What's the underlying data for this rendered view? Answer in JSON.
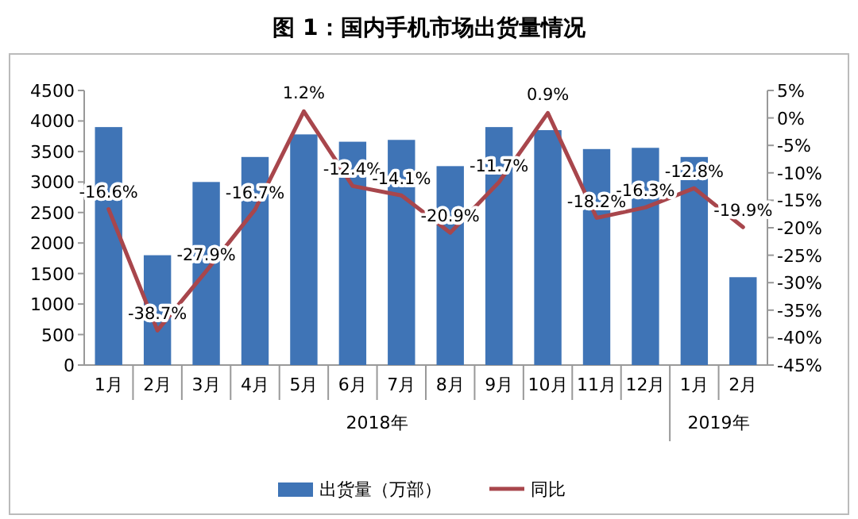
{
  "chart_data": {
    "type": "bar",
    "title": "图 1：国内手机市场出货量情况",
    "categories": [
      "1月",
      "2月",
      "3月",
      "4月",
      "5月",
      "6月",
      "7月",
      "8月",
      "9月",
      "10月",
      "11月",
      "12月",
      "1月",
      "2月"
    ],
    "series": [
      {
        "name": "出货量（万部）",
        "color": "#3f74b6",
        "values": [
          3900,
          1800,
          3000,
          3410,
          3780,
          3660,
          3690,
          3260,
          3900,
          3850,
          3540,
          3560,
          3410,
          1440
        ]
      },
      {
        "name": "同比",
        "type": "line",
        "axis": "y2",
        "color": "#a8464c",
        "values": [
          -16.6,
          -38.7,
          -27.9,
          -16.7,
          1.2,
          -12.4,
          -14.1,
          -20.9,
          -11.7,
          0.9,
          -18.2,
          -16.3,
          -12.8,
          -19.9
        ],
        "value_labels": [
          "-16.6%",
          "-38.7%",
          "-27.9%",
          "-16.7%",
          "1.2%",
          "-12.4%",
          "-14.1%",
          "-20.9%",
          "-11.7%",
          "0.9%",
          "-18.2%",
          "-16.3%",
          "-12.8%",
          "-19.9%"
        ]
      }
    ],
    "ylim": [
      0,
      4500
    ],
    "yticks": [
      0,
      500,
      1000,
      1500,
      2000,
      2500,
      3000,
      3500,
      4000,
      4500
    ],
    "y2lim": [
      -45,
      5
    ],
    "y2ticks": [
      {
        "value": 5,
        "label": "5%"
      },
      {
        "value": 0,
        "label": "0%"
      },
      {
        "value": -5,
        "label": "-5%"
      },
      {
        "value": -10,
        "label": "-10%"
      },
      {
        "value": -15,
        "label": "-15%"
      },
      {
        "value": -20,
        "label": "-20%"
      },
      {
        "value": -25,
        "label": "-25%"
      },
      {
        "value": -30,
        "label": "-30%"
      },
      {
        "value": -35,
        "label": "-35%"
      },
      {
        "value": -40,
        "label": "-40%"
      },
      {
        "value": -45,
        "label": "-45%"
      }
    ],
    "annotations": [
      "2018年",
      "2019年"
    ],
    "legend": "bottom",
    "grid": false
  }
}
